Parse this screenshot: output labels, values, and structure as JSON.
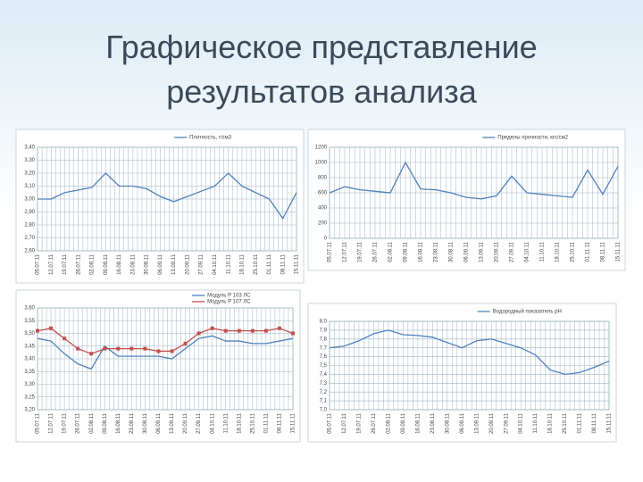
{
  "title": "Графическое представление результатов анализа",
  "chart_data": [
    {
      "type": "line",
      "legend": "Плотность, г/см3",
      "categories": [
        "05.07.11",
        "12.07.11",
        "19.07.11",
        "26.07.11",
        "02.08.11",
        "09.08.11",
        "16.08.11",
        "23.08.11",
        "30.08.11",
        "06.09.11",
        "13.09.11",
        "20.09.11",
        "27.09.11",
        "04.10.11",
        "11.10.11",
        "18.10.11",
        "25.10.11",
        "01.11.11",
        "08.11.11",
        "15.11.11"
      ],
      "series": [
        {
          "name": "Плотность, г/см3",
          "color": "#4f81bd",
          "values": [
            3.0,
            3.0,
            3.05,
            3.07,
            3.09,
            3.2,
            3.1,
            3.1,
            3.08,
            3.02,
            2.98,
            3.02,
            3.06,
            3.1,
            3.2,
            3.1,
            3.05,
            3.0,
            2.85,
            3.05
          ]
        }
      ],
      "ylim": [
        2.6,
        3.4
      ],
      "yticks": [
        {
          "value": 2.6,
          "label": "2,60"
        },
        {
          "value": 2.7,
          "label": "2,70"
        },
        {
          "value": 2.8,
          "label": "2,80"
        },
        {
          "value": 2.9,
          "label": "2,90"
        },
        {
          "value": 3.0,
          "label": "3,00"
        },
        {
          "value": 3.1,
          "label": "3,10"
        },
        {
          "value": 3.2,
          "label": "3,20"
        },
        {
          "value": 3.3,
          "label": "3,30"
        },
        {
          "value": 3.4,
          "label": "3,40"
        }
      ],
      "grid": true
    },
    {
      "type": "line",
      "legend": "Пределы прочности, кгс/см2",
      "categories": [
        "05.07.11",
        "12.07.11",
        "19.07.11",
        "26.07.11",
        "02.08.11",
        "09.08.11",
        "16.08.11",
        "23.08.11",
        "30.08.11",
        "06.09.11",
        "13.09.11",
        "20.09.11",
        "27.09.11",
        "04.10.11",
        "11.10.11",
        "18.10.11",
        "25.10.11",
        "01.11.11",
        "08.11.11",
        "15.11.11"
      ],
      "series": [
        {
          "name": "Пределы прочности, кгс/см2",
          "color": "#4f81bd",
          "values": [
            600,
            680,
            640,
            620,
            600,
            1000,
            650,
            640,
            600,
            540,
            520,
            560,
            820,
            600,
            580,
            560,
            540,
            900,
            580,
            950
          ]
        }
      ],
      "ylim": [
        0,
        1200
      ],
      "yticks": [
        0,
        200,
        400,
        600,
        800,
        1000,
        1200
      ],
      "grid": true
    },
    {
      "type": "line",
      "legend": null,
      "categories": [
        "05.07.11",
        "12.07.11",
        "19.07.11",
        "26.07.11",
        "02.08.11",
        "09.08.11",
        "16.08.11",
        "23.08.11",
        "30.08.11",
        "06.09.11",
        "13.09.11",
        "20.09.11",
        "27.09.11",
        "04.10.11",
        "11.10.11",
        "18.10.11",
        "25.10.11",
        "01.11.11",
        "08.11.11",
        "15.11.11"
      ],
      "series": [
        {
          "name": "Модуль P 103 ЛС",
          "color": "#4f81bd",
          "values": [
            3.48,
            3.47,
            3.42,
            3.38,
            3.36,
            3.45,
            3.41,
            3.41,
            3.41,
            3.41,
            3.4,
            3.44,
            3.48,
            3.49,
            3.47,
            3.47,
            3.46,
            3.46,
            3.47,
            3.48
          ]
        },
        {
          "name": "Модуль P 107 ЛС",
          "color": "#c0504d",
          "marker": "square",
          "values": [
            3.51,
            3.52,
            3.48,
            3.44,
            3.42,
            3.44,
            3.44,
            3.44,
            3.44,
            3.43,
            3.43,
            3.46,
            3.5,
            3.52,
            3.51,
            3.51,
            3.51,
            3.51,
            3.52,
            3.5
          ]
        }
      ],
      "ylim": [
        3.2,
        3.6
      ],
      "yticks": [
        {
          "value": 3.2,
          "label": "3,20"
        },
        {
          "value": 3.25,
          "label": "3,25"
        },
        {
          "value": 3.3,
          "label": "3,30"
        },
        {
          "value": 3.35,
          "label": "3,35"
        },
        {
          "value": 3.4,
          "label": "3,40"
        },
        {
          "value": 3.45,
          "label": "3,45"
        },
        {
          "value": 3.5,
          "label": "3,50"
        },
        {
          "value": 3.55,
          "label": "3,55"
        },
        {
          "value": 3.6,
          "label": "3,60"
        }
      ],
      "grid": true
    },
    {
      "type": "line",
      "legend": "Водородный показатель pH",
      "categories": [
        "05.07.11",
        "12.07.11",
        "19.07.11",
        "26.07.11",
        "02.08.11",
        "09.08.11",
        "16.08.11",
        "23.08.11",
        "30.08.11",
        "06.09.11",
        "13.09.11",
        "20.09.11",
        "27.09.11",
        "04.10.11",
        "11.10.11",
        "18.10.11",
        "25.10.11",
        "01.11.11",
        "08.11.11",
        "15.11.11"
      ],
      "series": [
        {
          "name": "Водородный показатель pH",
          "color": "#4f81bd",
          "values": [
            7.7,
            7.72,
            7.78,
            7.86,
            7.9,
            7.85,
            7.84,
            7.82,
            7.76,
            7.7,
            7.78,
            7.8,
            7.75,
            7.7,
            7.62,
            7.45,
            7.4,
            7.42,
            7.48,
            7.55
          ]
        }
      ],
      "ylim": [
        7.0,
        8.0
      ],
      "yticks": [
        {
          "value": 7.0,
          "label": "7,0"
        },
        {
          "value": 7.1,
          "label": "7,1"
        },
        {
          "value": 7.2,
          "label": "7,2"
        },
        {
          "value": 7.3,
          "label": "7,3"
        },
        {
          "value": 7.4,
          "label": "7,4"
        },
        {
          "value": 7.5,
          "label": "7,5"
        },
        {
          "value": 7.6,
          "label": "7,6"
        },
        {
          "value": 7.7,
          "label": "7,7"
        },
        {
          "value": 7.8,
          "label": "7,8"
        },
        {
          "value": 7.9,
          "label": "7,9"
        },
        {
          "value": 8.0,
          "label": "8,0"
        }
      ],
      "grid": true
    }
  ]
}
